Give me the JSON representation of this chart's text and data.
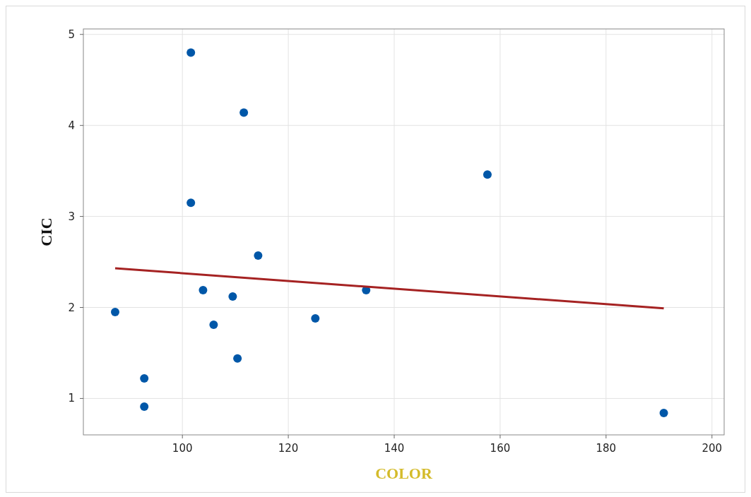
{
  "chart_data": {
    "type": "scatter",
    "xlabel": "COLOR",
    "ylabel": "CIC",
    "xlim": [
      81.3,
      202.3
    ],
    "ylim": [
      0.6,
      5.06
    ],
    "xticks": [
      100,
      120,
      140,
      160,
      180,
      200
    ],
    "yticks": [
      1,
      2,
      3,
      4,
      5
    ],
    "grid": true,
    "series": [
      {
        "color": "#0057a8",
        "marker": "circle",
        "x": [
          87.3,
          92.8,
          92.8,
          101.6,
          101.6,
          103.9,
          105.9,
          109.5,
          110.4,
          111.6,
          114.3,
          125.1,
          134.7,
          157.6,
          190.9
        ],
        "values": [
          1.95,
          1.22,
          0.91,
          4.8,
          3.15,
          2.19,
          1.81,
          2.12,
          1.44,
          4.14,
          2.57,
          1.88,
          2.19,
          3.46,
          0.84
        ]
      },
      {
        "type": "line",
        "color": "#a52222",
        "x": [
          87.3,
          190.9
        ],
        "values": [
          2.43,
          1.99
        ]
      }
    ]
  }
}
